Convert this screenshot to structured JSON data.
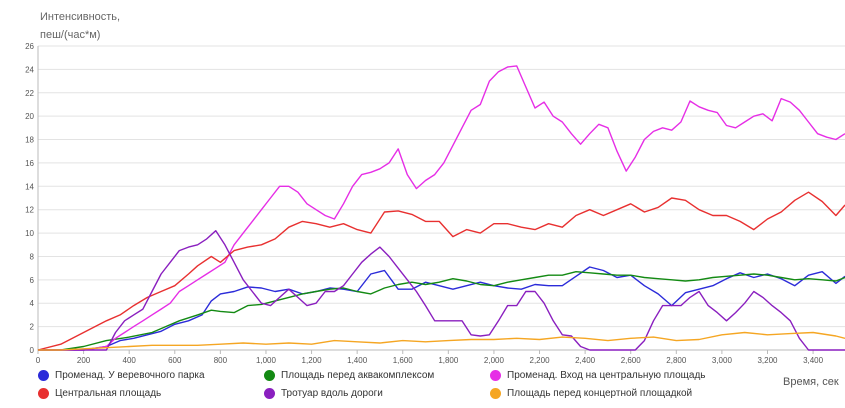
{
  "chart_data": {
    "type": "line",
    "ylabel": "Интенсивность, пеш/(час*м)",
    "xlabel": "Время, сек",
    "xlim": [
      0,
      3540
    ],
    "ylim": [
      0,
      26
    ],
    "yticks": [
      0,
      2,
      4,
      6,
      8,
      10,
      12,
      14,
      16,
      18,
      20,
      22,
      24,
      26
    ],
    "xticks": [
      0,
      200,
      400,
      600,
      800,
      1000,
      1200,
      1400,
      1600,
      1800,
      2000,
      2200,
      2400,
      2600,
      2800,
      3000,
      3200,
      3400
    ],
    "xtick_labels": [
      "0",
      "200",
      "400",
      "600",
      "800",
      "1,000",
      "1,200",
      "1,400",
      "1,600",
      "1,800",
      "2,000",
      "2,200",
      "2,400",
      "2,600",
      "2,800",
      "3,000",
      "3,200",
      "3,400"
    ],
    "grid": "horizontal",
    "legend_position": "bottom",
    "series": [
      {
        "name": "Променад. У веревочного парка",
        "color": "#2b2bd9",
        "x": [
          0,
          100,
          200,
          300,
          360,
          420,
          480,
          540,
          600,
          660,
          720,
          760,
          800,
          860,
          920,
          980,
          1040,
          1100,
          1160,
          1220,
          1280,
          1340,
          1400,
          1460,
          1520,
          1580,
          1640,
          1700,
          1760,
          1820,
          1880,
          1940,
          2000,
          2060,
          2120,
          2180,
          2240,
          2300,
          2360,
          2420,
          2480,
          2540,
          2600,
          2660,
          2720,
          2780,
          2840,
          2900,
          2960,
          3020,
          3080,
          3140,
          3200,
          3260,
          3320,
          3380,
          3440,
          3500,
          3540
        ],
        "y": [
          0,
          0,
          0,
          0.3,
          0.8,
          1.0,
          1.3,
          1.6,
          2.2,
          2.5,
          3.0,
          4.2,
          4.8,
          5.0,
          5.4,
          5.3,
          5.0,
          5.2,
          4.8,
          5.0,
          5.3,
          5.2,
          5.0,
          6.5,
          6.8,
          5.2,
          5.2,
          5.8,
          5.5,
          5.2,
          5.5,
          5.8,
          5.5,
          5.3,
          5.2,
          5.6,
          5.5,
          5.5,
          6.3,
          7.1,
          6.8,
          6.2,
          6.4,
          5.5,
          4.8,
          3.8,
          4.9,
          5.2,
          5.5,
          6.1,
          6.6,
          6.2,
          6.5,
          6.1,
          5.5,
          6.4,
          6.7,
          5.7,
          6.3
        ]
      },
      {
        "name": "Площадь перед аквакомплексом",
        "color": "#138a13",
        "x": [
          0,
          100,
          200,
          300,
          400,
          500,
          560,
          620,
          700,
          760,
          800,
          860,
          920,
          980,
          1040,
          1100,
          1160,
          1220,
          1280,
          1340,
          1400,
          1460,
          1520,
          1580,
          1640,
          1700,
          1760,
          1820,
          1880,
          1940,
          2000,
          2060,
          2120,
          2180,
          2240,
          2300,
          2360,
          2420,
          2480,
          2540,
          2600,
          2660,
          2720,
          2780,
          2840,
          2900,
          2960,
          3020,
          3080,
          3140,
          3200,
          3260,
          3320,
          3380,
          3440,
          3500,
          3540
        ],
        "y": [
          0,
          0,
          0.3,
          0.8,
          1.1,
          1.5,
          2.0,
          2.5,
          3.0,
          3.4,
          3.3,
          3.2,
          3.8,
          3.9,
          4.2,
          4.5,
          4.8,
          5.0,
          5.2,
          5.3,
          5.0,
          4.8,
          5.3,
          5.6,
          5.8,
          5.6,
          5.8,
          6.1,
          5.9,
          5.6,
          5.5,
          5.8,
          6.0,
          6.2,
          6.4,
          6.4,
          6.7,
          6.6,
          6.5,
          6.4,
          6.4,
          6.2,
          6.1,
          6.0,
          5.9,
          6.0,
          6.2,
          6.3,
          6.4,
          6.5,
          6.4,
          6.2,
          6.0,
          6.1,
          6.0,
          5.9,
          6.2
        ]
      },
      {
        "name": "Променад. Вход на центральную площадь",
        "color": "#e62ee6",
        "x": [
          0,
          100,
          200,
          300,
          340,
          380,
          420,
          460,
          500,
          540,
          580,
          620,
          660,
          700,
          740,
          780,
          820,
          860,
          900,
          940,
          980,
          1020,
          1060,
          1100,
          1140,
          1180,
          1220,
          1260,
          1300,
          1340,
          1380,
          1420,
          1460,
          1500,
          1540,
          1580,
          1620,
          1660,
          1700,
          1740,
          1780,
          1820,
          1860,
          1900,
          1940,
          1980,
          2020,
          2060,
          2100,
          2140,
          2180,
          2220,
          2260,
          2300,
          2340,
          2380,
          2420,
          2460,
          2500,
          2540,
          2580,
          2620,
          2660,
          2700,
          2740,
          2780,
          2820,
          2860,
          2900,
          2940,
          2980,
          3020,
          3060,
          3100,
          3140,
          3180,
          3220,
          3260,
          3300,
          3340,
          3380,
          3420,
          3460,
          3500,
          3540
        ],
        "y": [
          0,
          0,
          0,
          0.3,
          1.0,
          1.5,
          2.0,
          2.5,
          3.0,
          3.5,
          4.0,
          5.0,
          5.5,
          6.0,
          6.5,
          7.0,
          7.5,
          9.0,
          10.0,
          11.0,
          12.0,
          13.0,
          14.0,
          14.0,
          13.5,
          12.5,
          12.0,
          11.5,
          11.2,
          12.5,
          14.0,
          15.0,
          15.2,
          15.5,
          16.0,
          17.2,
          15.0,
          13.8,
          14.5,
          15.0,
          16.0,
          17.5,
          19.0,
          20.5,
          21.0,
          23.0,
          23.8,
          24.2,
          24.3,
          22.5,
          20.7,
          21.2,
          20.0,
          19.5,
          18.5,
          17.6,
          18.5,
          19.3,
          19.0,
          17.0,
          15.3,
          16.5,
          18.0,
          18.7,
          19.0,
          18.8,
          19.5,
          21.3,
          20.8,
          20.5,
          20.3,
          19.2,
          19.0,
          19.5,
          20.0,
          20.2,
          19.6,
          21.5,
          21.2,
          20.5,
          19.5,
          18.5,
          18.2,
          18.0,
          18.5
        ]
      },
      {
        "name": "Центральная площадь",
        "color": "#e83030",
        "x": [
          0,
          100,
          200,
          300,
          360,
          420,
          480,
          540,
          600,
          660,
          700,
          760,
          800,
          860,
          920,
          980,
          1040,
          1100,
          1160,
          1220,
          1280,
          1340,
          1400,
          1460,
          1520,
          1580,
          1640,
          1700,
          1760,
          1820,
          1880,
          1940,
          2000,
          2060,
          2120,
          2180,
          2240,
          2300,
          2360,
          2420,
          2480,
          2540,
          2600,
          2660,
          2720,
          2780,
          2840,
          2900,
          2960,
          3020,
          3080,
          3140,
          3200,
          3260,
          3320,
          3380,
          3440,
          3500,
          3540
        ],
        "y": [
          0,
          0.5,
          1.5,
          2.5,
          3.0,
          3.8,
          4.5,
          5.0,
          5.5,
          6.5,
          7.2,
          8.0,
          7.5,
          8.5,
          8.8,
          9.0,
          9.5,
          10.5,
          11.0,
          10.8,
          10.5,
          10.8,
          10.3,
          10.0,
          11.8,
          11.9,
          11.6,
          11.0,
          11.0,
          9.7,
          10.3,
          10.0,
          10.8,
          10.8,
          10.5,
          10.3,
          10.8,
          10.5,
          11.5,
          12.0,
          11.5,
          12.0,
          12.5,
          11.8,
          12.2,
          13.0,
          12.8,
          12.0,
          11.5,
          11.5,
          11.0,
          10.3,
          11.2,
          11.8,
          12.8,
          13.5,
          12.7,
          11.5,
          12.4
        ]
      },
      {
        "name": "Тротуар вдоль дороги",
        "color": "#8a1fbf",
        "x": [
          0,
          100,
          200,
          300,
          340,
          380,
          420,
          460,
          500,
          540,
          580,
          620,
          660,
          700,
          740,
          780,
          820,
          860,
          900,
          940,
          980,
          1020,
          1060,
          1100,
          1140,
          1180,
          1220,
          1260,
          1300,
          1340,
          1380,
          1420,
          1460,
          1500,
          1540,
          1580,
          1620,
          1660,
          1700,
          1740,
          1780,
          1820,
          1860,
          1900,
          1940,
          1980,
          2020,
          2060,
          2100,
          2140,
          2180,
          2220,
          2260,
          2300,
          2340,
          2380,
          2420,
          2460,
          2500,
          2540,
          2580,
          2620,
          2660,
          2700,
          2740,
          2780,
          2820,
          2860,
          2900,
          2940,
          2980,
          3020,
          3060,
          3100,
          3140,
          3180,
          3220,
          3260,
          3300,
          3340,
          3380,
          3420,
          3460,
          3500,
          3540
        ],
        "y": [
          0,
          0,
          0,
          0,
          1.5,
          2.5,
          3.0,
          3.5,
          5.0,
          6.5,
          7.5,
          8.5,
          8.8,
          9.0,
          9.5,
          10.2,
          9.0,
          7.5,
          6.0,
          5.0,
          4.0,
          3.8,
          4.5,
          5.2,
          4.5,
          3.8,
          4.0,
          5.0,
          5.0,
          5.5,
          6.5,
          7.5,
          8.2,
          8.8,
          8.0,
          7.0,
          6.0,
          5.0,
          3.8,
          2.5,
          2.5,
          2.5,
          2.5,
          1.3,
          1.2,
          1.3,
          2.5,
          3.8,
          3.8,
          5.0,
          5.0,
          4.0,
          2.5,
          1.3,
          1.2,
          0.3,
          0,
          0,
          0,
          0,
          0,
          0,
          0.8,
          2.5,
          3.8,
          3.8,
          3.8,
          4.5,
          5.0,
          3.8,
          3.2,
          2.5,
          3.2,
          4.0,
          5.0,
          4.5,
          3.8,
          3.2,
          2.5,
          1.0,
          0,
          0,
          0,
          0,
          0
        ]
      },
      {
        "name": "Площадь перед концертной площадкой",
        "color": "#f5a623",
        "x": [
          0,
          100,
          200,
          300,
          400,
          500,
          600,
          700,
          800,
          900,
          1000,
          1100,
          1200,
          1300,
          1400,
          1500,
          1600,
          1700,
          1800,
          1900,
          2000,
          2100,
          2200,
          2300,
          2400,
          2500,
          2600,
          2700,
          2800,
          2900,
          3000,
          3100,
          3200,
          3300,
          3400,
          3500,
          3540
        ],
        "y": [
          0,
          0,
          0.1,
          0.2,
          0.3,
          0.4,
          0.4,
          0.4,
          0.5,
          0.6,
          0.5,
          0.6,
          0.5,
          0.8,
          0.7,
          0.6,
          0.8,
          0.7,
          0.8,
          0.9,
          0.9,
          1.0,
          0.9,
          1.1,
          1.0,
          0.8,
          1.0,
          1.1,
          0.8,
          0.9,
          1.3,
          1.5,
          1.3,
          1.4,
          1.5,
          1.2,
          1.0
        ]
      }
    ]
  }
}
